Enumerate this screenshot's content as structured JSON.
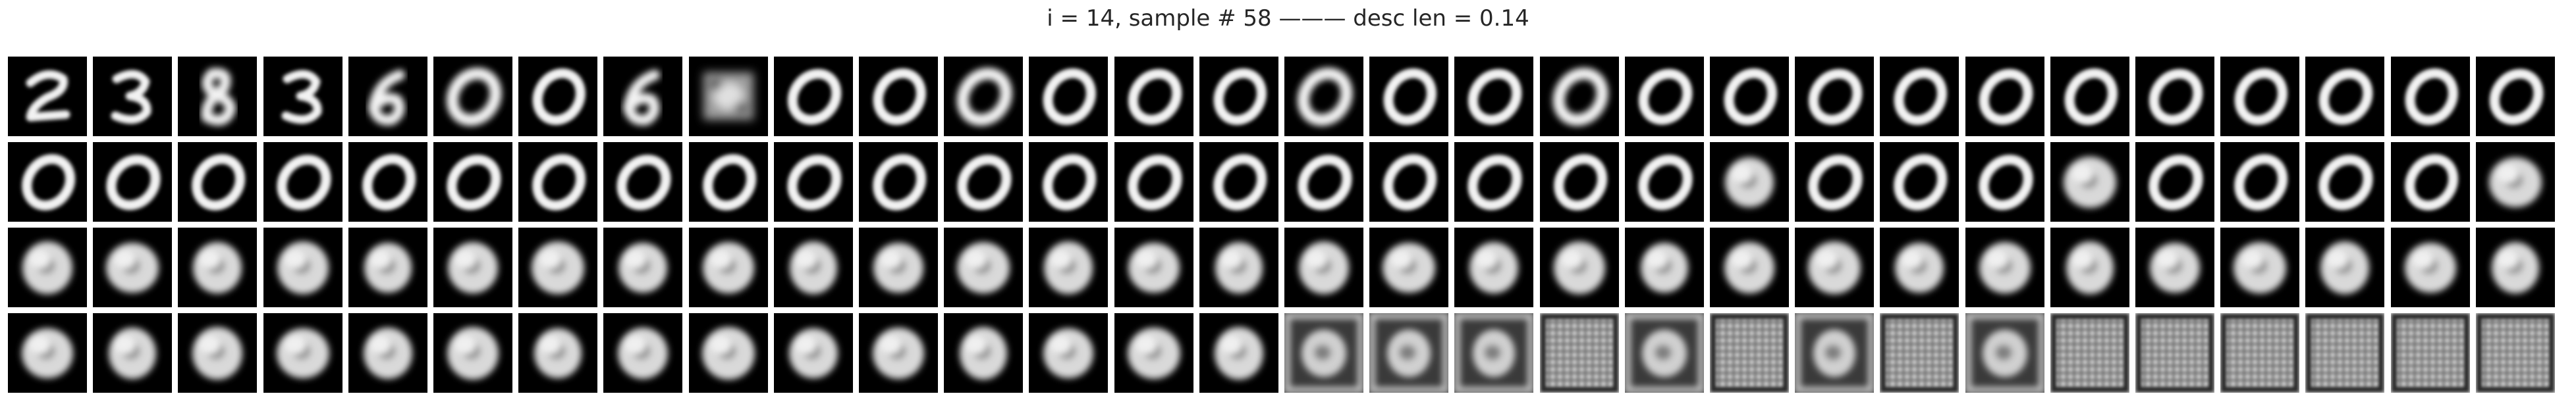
{
  "figure": {
    "title": "i = 14, sample # 58 ——— desc len = 0.14"
  },
  "grid": {
    "rows": 4,
    "columns": 30,
    "background_color": "#ffffff",
    "tile_background_color": "#000000",
    "tiles": [
      [
        "digit-2",
        "digit-3",
        "digit-8-blurry",
        "digit-3",
        "digit-6-blurry",
        "digit-0-blurry",
        "digit-0",
        "digit-6-blurry",
        "noisy-blob",
        "digit-0",
        "digit-0",
        "digit-0-blurry",
        "digit-0",
        "digit-0",
        "digit-0",
        "digit-0-blurry",
        "digit-0",
        "digit-0",
        "digit-0-blurry",
        "digit-0",
        "digit-0",
        "digit-0",
        "digit-0",
        "digit-0",
        "digit-0",
        "digit-0",
        "digit-0",
        "digit-0",
        "digit-0",
        "digit-0"
      ],
      [
        "digit-0",
        "digit-0",
        "digit-0",
        "digit-0",
        "digit-0",
        "digit-0",
        "digit-0",
        "digit-0",
        "digit-0",
        "digit-0",
        "digit-0",
        "digit-0",
        "digit-0",
        "digit-0",
        "digit-0",
        "digit-0",
        "digit-0",
        "digit-0",
        "digit-0",
        "digit-0",
        "blob",
        "digit-0",
        "digit-0",
        "digit-0",
        "blob",
        "digit-0",
        "digit-0",
        "digit-0",
        "digit-0",
        "blob"
      ],
      [
        "blob",
        "blob",
        "blob",
        "blob",
        "blob",
        "blob",
        "blob",
        "blob",
        "blob",
        "blob",
        "blob",
        "blob",
        "blob",
        "blob",
        "blob",
        "blob",
        "blob",
        "blob",
        "blob",
        "blob",
        "blob",
        "blob",
        "blob",
        "blob",
        "blob",
        "blob",
        "blob",
        "blob",
        "blob",
        "blob"
      ],
      [
        "blob",
        "blob",
        "blob",
        "blob",
        "blob",
        "blob",
        "blob",
        "blob",
        "blob",
        "blob",
        "blob",
        "blob",
        "blob",
        "blob",
        "blob",
        "blob-framed",
        "blob-framed",
        "blob-framed",
        "grid-artifact",
        "blob-framed",
        "grid-artifact",
        "blob-framed",
        "grid-artifact",
        "blob-framed",
        "grid-artifact",
        "grid-artifact",
        "grid-artifact",
        "grid-artifact",
        "grid-artifact",
        "grid-artifact"
      ]
    ]
  }
}
